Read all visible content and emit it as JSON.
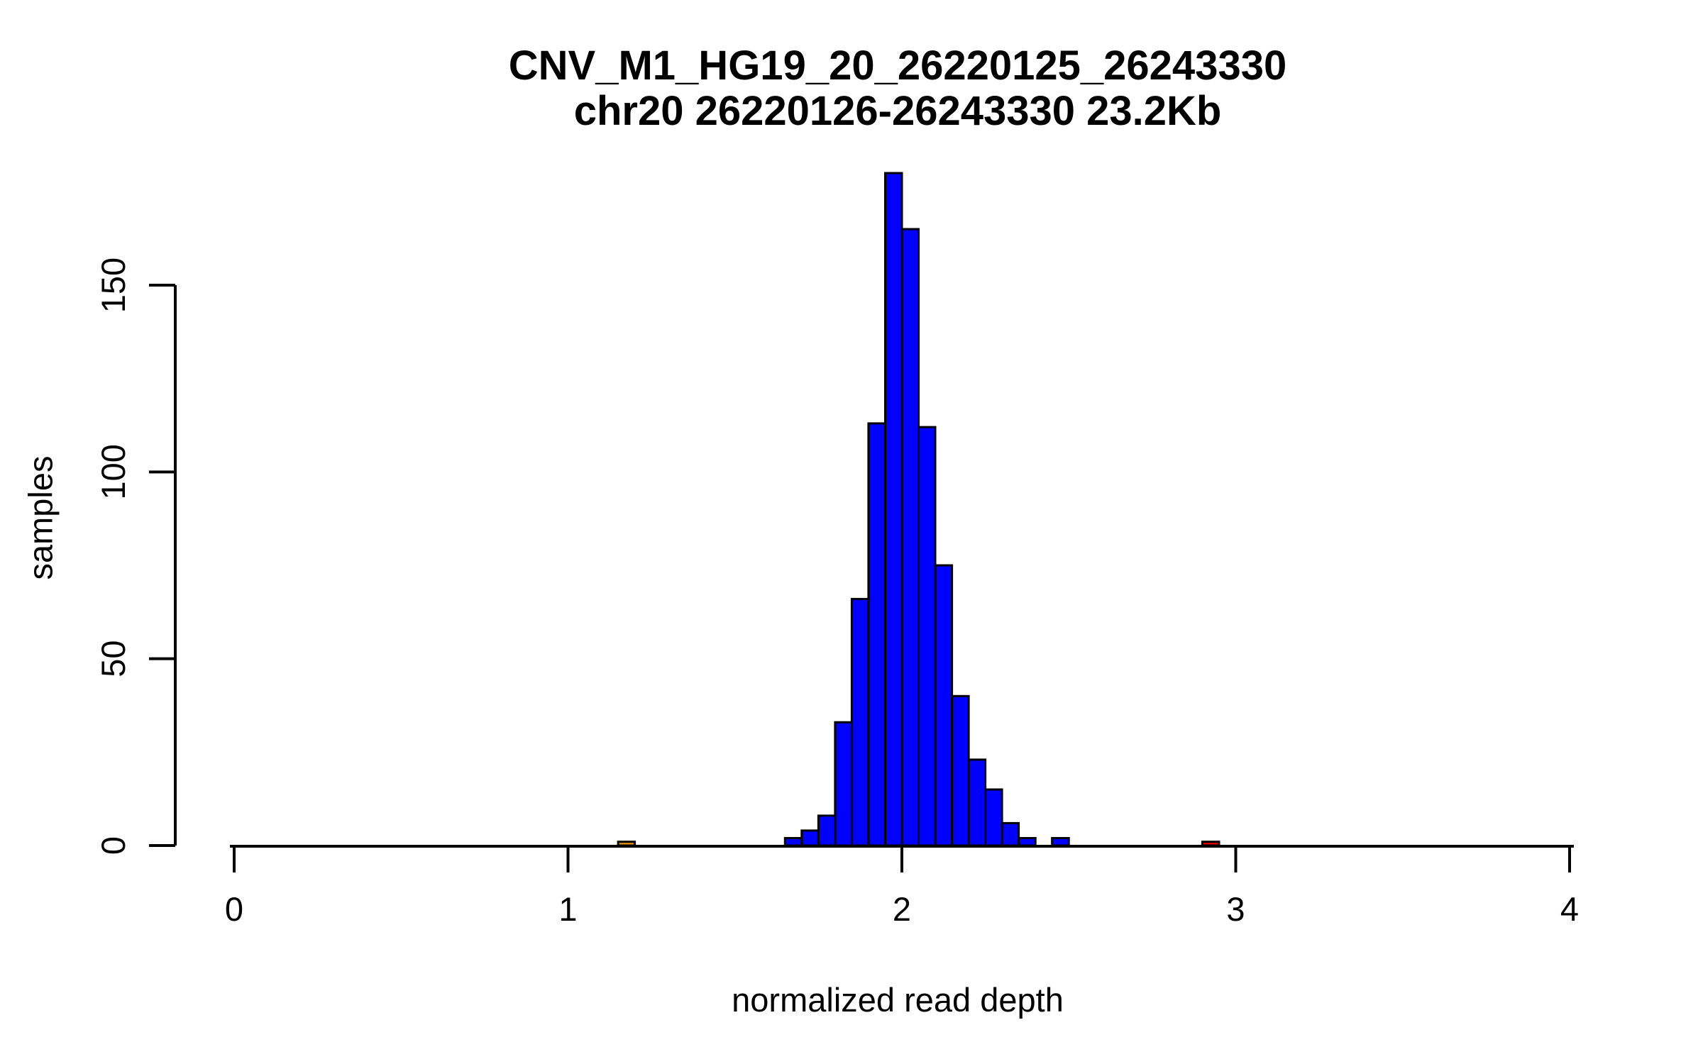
{
  "chart_data": {
    "type": "bar",
    "subtype": "histogram",
    "title": "CNV_M1_HG19_20_26220125_26243330",
    "subtitle": "chr20 26220126-26243330 23.2Kb",
    "xlabel": "normalized read depth",
    "ylabel": "samples",
    "xlim": [
      0,
      4
    ],
    "ylim": [
      0,
      180
    ],
    "x_ticks": [
      0,
      1,
      2,
      3,
      4
    ],
    "y_ticks": [
      0,
      50,
      100,
      150
    ],
    "grid": false,
    "legend": null,
    "bin_width": 0.05,
    "bars": [
      {
        "bin_start": 1.15,
        "count": 1,
        "color": "#E69500"
      },
      {
        "bin_start": 1.65,
        "count": 2,
        "color": "#0000FF"
      },
      {
        "bin_start": 1.7,
        "count": 4,
        "color": "#0000FF"
      },
      {
        "bin_start": 1.75,
        "count": 8,
        "color": "#0000FF"
      },
      {
        "bin_start": 1.8,
        "count": 33,
        "color": "#0000FF"
      },
      {
        "bin_start": 1.85,
        "count": 66,
        "color": "#0000FF"
      },
      {
        "bin_start": 1.9,
        "count": 113,
        "color": "#0000FF"
      },
      {
        "bin_start": 1.95,
        "count": 180,
        "color": "#0000FF"
      },
      {
        "bin_start": 2.0,
        "count": 165,
        "color": "#0000FF"
      },
      {
        "bin_start": 2.05,
        "count": 112,
        "color": "#0000FF"
      },
      {
        "bin_start": 2.1,
        "count": 75,
        "color": "#0000FF"
      },
      {
        "bin_start": 2.15,
        "count": 40,
        "color": "#0000FF"
      },
      {
        "bin_start": 2.2,
        "count": 23,
        "color": "#0000FF"
      },
      {
        "bin_start": 2.25,
        "count": 15,
        "color": "#0000FF"
      },
      {
        "bin_start": 2.3,
        "count": 6,
        "color": "#0000FF"
      },
      {
        "bin_start": 2.35,
        "count": 2,
        "color": "#0000FF"
      },
      {
        "bin_start": 2.4,
        "count": 0,
        "color": "#0000FF"
      },
      {
        "bin_start": 2.45,
        "count": 2,
        "color": "#0000FF"
      },
      {
        "bin_start": 2.9,
        "count": 1,
        "color": "#EE0000"
      }
    ],
    "colors": {
      "main_fill": "#0000FF",
      "low_outlier_fill": "#E69500",
      "high_outlier_fill": "#EE0000",
      "bar_border": "#000000",
      "axis": "#000000",
      "text": "#000000",
      "background": "#FFFFFF"
    }
  }
}
